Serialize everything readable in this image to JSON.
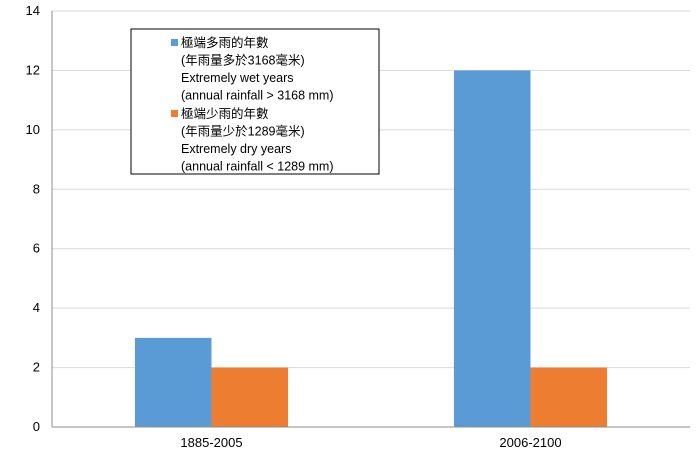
{
  "chart_data": {
    "type": "bar",
    "categories": [
      "1885-2005",
      "2006-2100"
    ],
    "series": [
      {
        "name_lines": [
          "極端多雨的年數",
          "(年雨量多於3168毫米)",
          "Extremely wet years",
          "(annual rainfall > 3168 mm)"
        ],
        "values": [
          3,
          12
        ],
        "color": "#5b9bd5"
      },
      {
        "name_lines": [
          "極端少雨的年數",
          "(年雨量少於1289毫米)",
          "Extremely dry years",
          "(annual rainfall < 1289 mm)"
        ],
        "values": [
          2,
          2
        ],
        "color": "#ed7d31"
      }
    ],
    "ylim": [
      0,
      14
    ],
    "yticks": [
      "0",
      "2",
      "4",
      "6",
      "8",
      "10",
      "12",
      "14"
    ],
    "grid": true,
    "legend_position": "top-left"
  }
}
